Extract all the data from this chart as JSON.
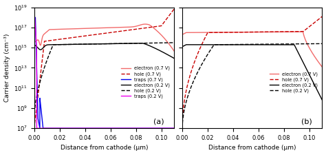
{
  "title_a": "(a)",
  "title_b": "(b)",
  "xlabel": "Distance from cathode (μm)",
  "ylabel": "Carrier density (cm⁻³)",
  "xlim": [
    0,
    0.11
  ],
  "ylim_log": [
    7,
    19
  ],
  "xticks": [
    0.0,
    0.02,
    0.04,
    0.06,
    0.08,
    0.1
  ],
  "colors": {
    "electron_07": "#f26b6b",
    "hole_07": "#c80000",
    "traps_07": "#0000ee",
    "electron_02": "#000000",
    "hole_02": "#000000",
    "traps_02": "#ee00ee"
  },
  "legend_a": [
    {
      "label": "electron (0.7 V)",
      "color": "#f26b6b",
      "ls": "-"
    },
    {
      "label": "hole (0.7 V)",
      "color": "#c80000",
      "ls": "--"
    },
    {
      "label": "traps (0.7 V)",
      "color": "#0000ee",
      "ls": "-"
    },
    {
      "label": "electron (0.2 V)",
      "color": "#000000",
      "ls": "-"
    },
    {
      "label": "hole (0.2 V)",
      "color": "#000000",
      "ls": "--"
    },
    {
      "label": "traps (0.2 V)",
      "color": "#ee00ee",
      "ls": "-"
    }
  ],
  "legend_b": [
    {
      "label": "electron (0.7 V)",
      "color": "#f26b6b",
      "ls": "-"
    },
    {
      "label": "hole (0.7 V)",
      "color": "#c80000",
      "ls": "--"
    },
    {
      "label": "electron (0.2 V)",
      "color": "#000000",
      "ls": "-"
    },
    {
      "label": "hole (0.2 V)",
      "color": "#000000",
      "ls": "--"
    }
  ]
}
